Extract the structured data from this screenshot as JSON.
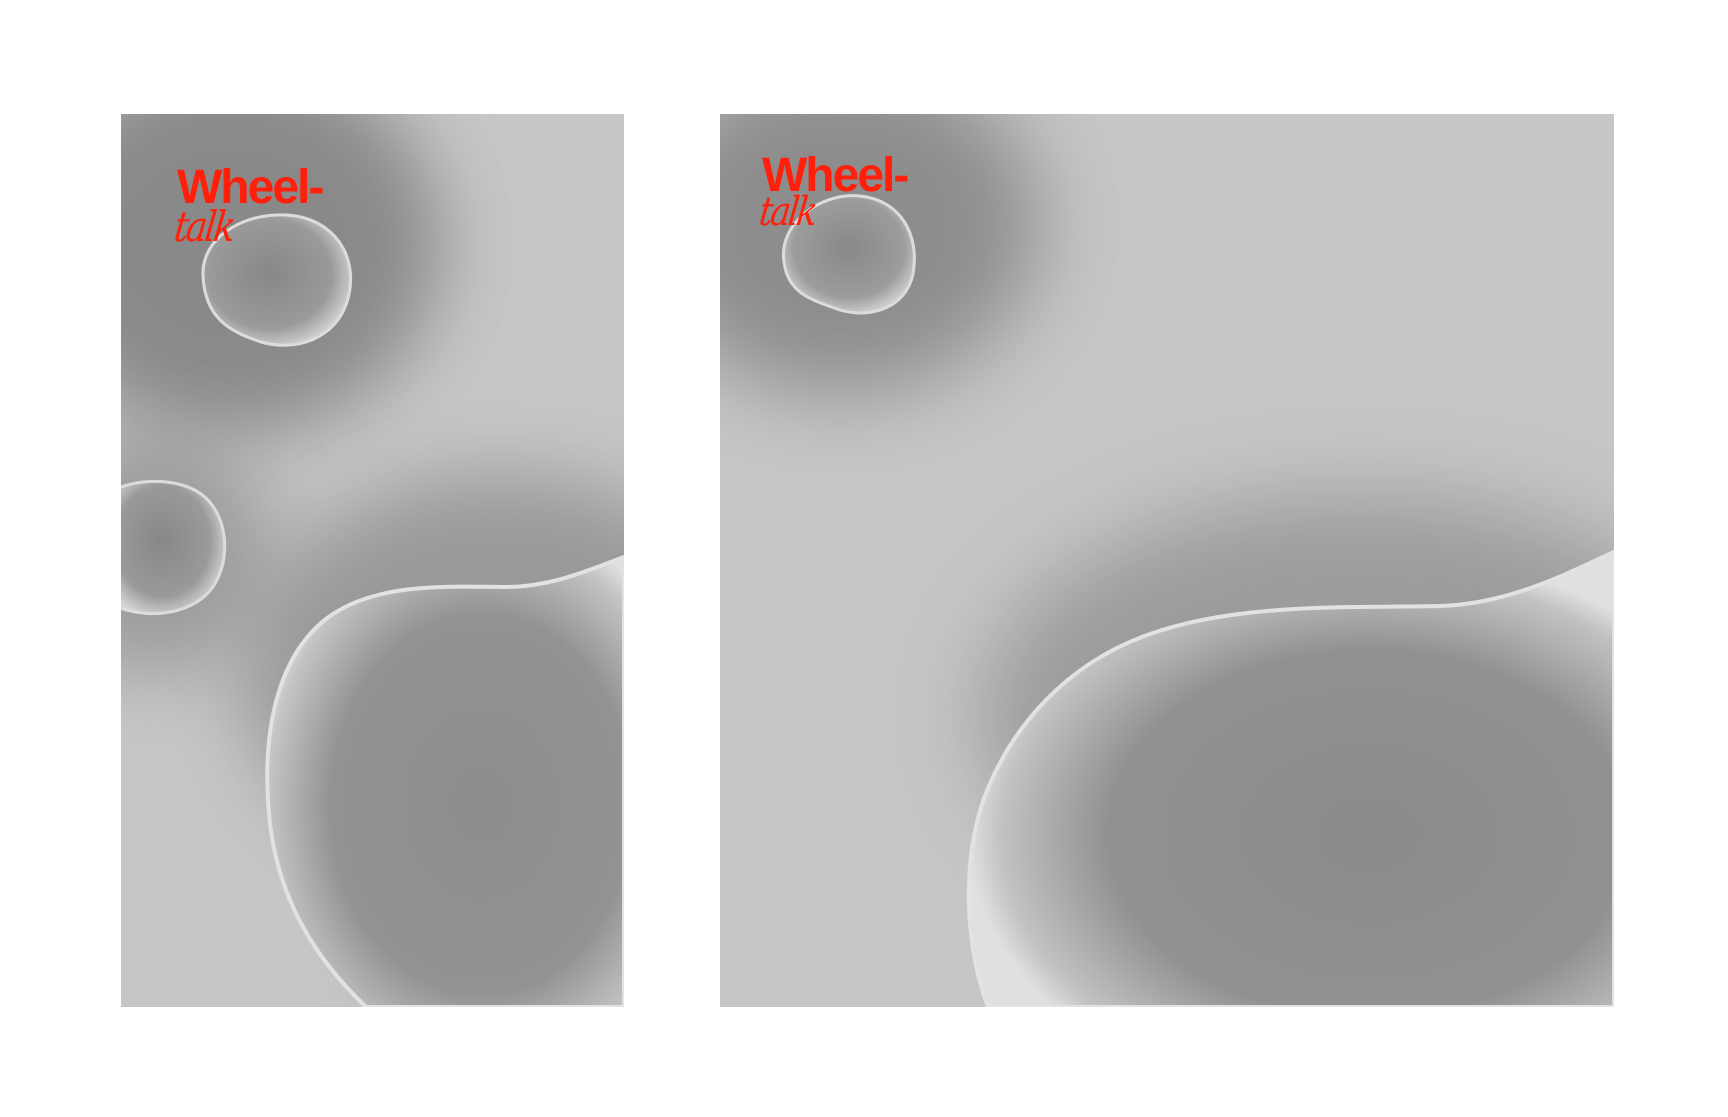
{
  "colors": {
    "page_background": "#ffffff",
    "poster_base": "#c6c6c6",
    "shadow_dark": "#8a8a8a",
    "highlight": "#e2e2e2",
    "brand_red": "#ff1f0a"
  },
  "posters": [
    {
      "orientation": "portrait",
      "brand": {
        "line1": "Wheel-",
        "line2": "talk"
      }
    },
    {
      "orientation": "square",
      "brand": {
        "line1": "Wheel-",
        "line2": "talk"
      }
    }
  ]
}
